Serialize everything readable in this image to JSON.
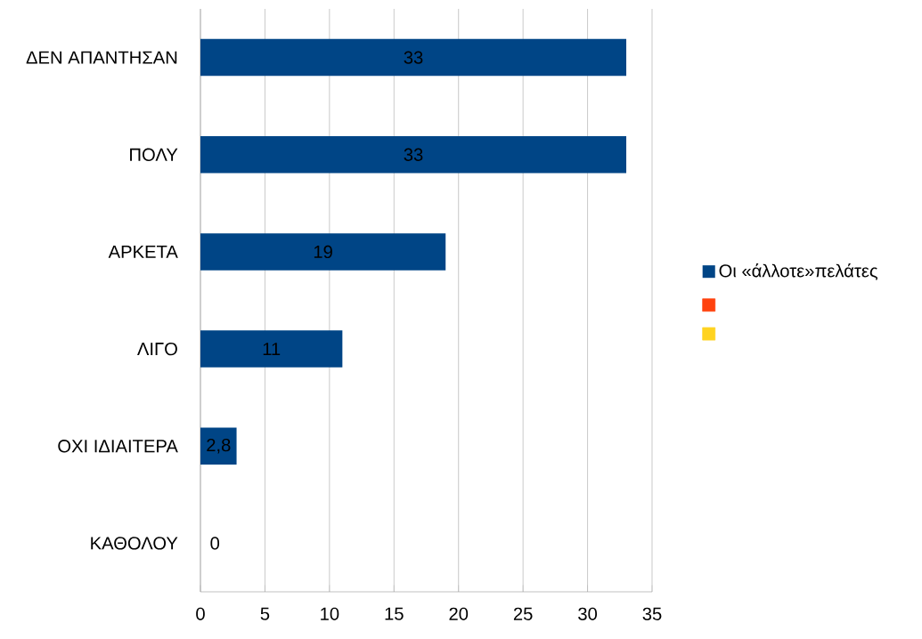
{
  "chart_data": {
    "type": "bar",
    "orientation": "horizontal",
    "categories": [
      "ΔΕΝ ΑΠΑΝΤΗΣΑΝ",
      "ΠΟΛΥ",
      "ΑΡΚΕΤΑ",
      "ΛΙΓΟ",
      "ΟΧΙ ΙΔΙΑΙΤΕΡΑ",
      "ΚΑΘΟΛΟΥ"
    ],
    "series": [
      {
        "name": "Οι «άλλοτε»πελάτες",
        "color": "#004586",
        "values": [
          33,
          33,
          19,
          11,
          2.8,
          0
        ],
        "value_labels": [
          "33",
          "33",
          "19",
          "11",
          "2,8",
          "0"
        ]
      },
      {
        "color": "#ff420e",
        "values": [
          null,
          null,
          null,
          null,
          null,
          null
        ]
      },
      {
        "color": "#ffd320",
        "values": [
          null,
          null,
          null,
          null,
          null,
          null
        ]
      }
    ],
    "xlim": [
      0,
      35
    ],
    "xticks": [
      0,
      5,
      10,
      15,
      20,
      25,
      30,
      35
    ],
    "grid": "x",
    "legend": "right"
  }
}
